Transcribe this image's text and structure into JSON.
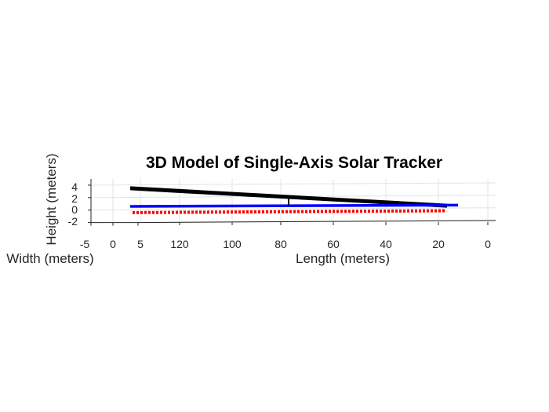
{
  "chart_data": {
    "type": "line",
    "title": "3D Model of Single-Axis Solar Tracker",
    "xlabel": "Width (meters)",
    "ylabel": "Length (meters)",
    "zlabel": "Height (meters)",
    "x_ticks": [
      "-5",
      "0",
      "5"
    ],
    "y_ticks": [
      "120",
      "100",
      "80",
      "60",
      "40",
      "20",
      "0"
    ],
    "z_ticks": [
      "4",
      "2",
      "0",
      "-2"
    ],
    "zlim": [
      -2,
      5
    ],
    "grid": true,
    "series": [
      {
        "style": "solid-thick",
        "color": "#000000",
        "z": [
          3.5,
          0.7
        ]
      },
      {
        "style": "solid",
        "color": "#0000ff",
        "z": [
          0.6,
          0.8
        ]
      },
      {
        "style": "dotted",
        "color": "#ff0000",
        "z": [
          -0.4,
          -0.1
        ]
      }
    ],
    "post": {
      "color": "#000000",
      "z": [
        0.7,
        2.3
      ]
    }
  }
}
